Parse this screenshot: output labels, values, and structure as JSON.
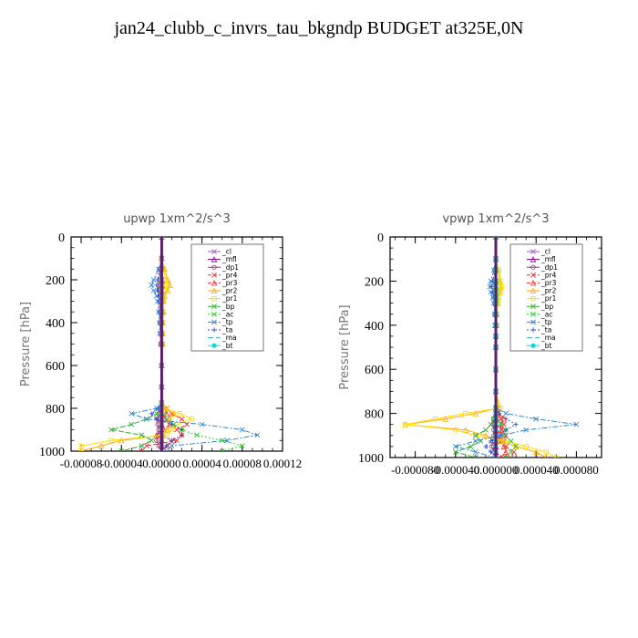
{
  "title": "jan24_clubb_c_invrs_tau_bkgndp  BUDGET at325E,0N",
  "series_styles": [
    {
      "name": "_cl",
      "color": "#9966cc",
      "marker": "x",
      "dash": ""
    },
    {
      "name": "_mfl",
      "color": "#800080",
      "marker": "tri",
      "dash": ""
    },
    {
      "name": "_dp1",
      "color": "#993366",
      "marker": "circle",
      "dash": ""
    },
    {
      "name": "_pr4",
      "color": "#ee3333",
      "marker": "x",
      "dash": "4,2"
    },
    {
      "name": "_pr3",
      "color": "#ee3333",
      "marker": "tri",
      "dash": "4,2"
    },
    {
      "name": "_pr2",
      "color": "#ffaa00",
      "marker": "tri",
      "dash": ""
    },
    {
      "name": "_pr1",
      "color": "#ffdd00",
      "marker": "square",
      "dash": ""
    },
    {
      "name": "_bp",
      "color": "#33aa33",
      "marker": "x",
      "dash": "6,2"
    },
    {
      "name": "_ac",
      "color": "#33cc33",
      "marker": "x",
      "dash": "2,2"
    },
    {
      "name": "_tp",
      "color": "#3388cc",
      "marker": "x",
      "dash": "6,2,2,2"
    },
    {
      "name": "_ta",
      "color": "#3355cc",
      "marker": "plus",
      "dash": "2,2"
    },
    {
      "name": "_ma",
      "color": "#22aacc",
      "marker": "none",
      "dash": "6,3"
    },
    {
      "name": "_bt",
      "color": "#00dddd",
      "marker": "dot",
      "dash": ""
    }
  ],
  "chart_data": [
    {
      "type": "line",
      "title": "upwp   1xm^2/s^3",
      "ylabel": "Pressure  [hPa]",
      "xlim": [
        -9e-05,
        0.00012
      ],
      "ylim": [
        1000,
        0
      ],
      "x_tick_labels": [
        "-0.00008",
        "-0.00004",
        "0.00000",
        "0.00004",
        "0.00008",
        "0.00012"
      ],
      "x_tick_values": [
        -8e-05,
        -4e-05,
        0.0,
        4e-05,
        8e-05,
        0.00012
      ],
      "y_tick_labels": [
        "0",
        "200",
        "400",
        "600",
        "800",
        "1000"
      ],
      "y_tick_values": [
        0,
        200,
        400,
        600,
        800,
        1000
      ],
      "legend_position": "top-right",
      "pressure_levels": [
        0,
        100,
        150,
        200,
        225,
        250,
        275,
        300,
        350,
        400,
        450,
        500,
        600,
        700,
        775,
        800,
        825,
        850,
        875,
        900,
        925,
        950,
        975,
        1000
      ],
      "series": [
        {
          "name": "_cl",
          "values": [
            0,
            0,
            0,
            0,
            0,
            0,
            0,
            0,
            0,
            0,
            0,
            0,
            0,
            0,
            0,
            0,
            0,
            0,
            0,
            0,
            0,
            0,
            0,
            0
          ]
        },
        {
          "name": "_mfl",
          "values": [
            0,
            0,
            0,
            0,
            0,
            0,
            0,
            0,
            0,
            0,
            0,
            0,
            0,
            0,
            0,
            0,
            0,
            0,
            0,
            0,
            0,
            0,
            0,
            0
          ]
        },
        {
          "name": "_dp1",
          "values": [
            0,
            0,
            -2e-06,
            -2e-06,
            -3e-06,
            -3e-06,
            -2e-06,
            -2e-06,
            -2e-06,
            -2e-06,
            -1e-06,
            -1e-06,
            0,
            0,
            0,
            0,
            -3e-06,
            -4e-06,
            -4e-06,
            -3e-06,
            -4e-06,
            -5e-06,
            -3e-06,
            0
          ]
        },
        {
          "name": "_pr4",
          "values": [
            0,
            0,
            0,
            1e-06,
            1e-06,
            1e-06,
            1e-06,
            1e-06,
            1e-06,
            0,
            0,
            0,
            0,
            0,
            0,
            5e-06,
            1e-05,
            2e-05,
            2.5e-05,
            1.5e-05,
            2e-05,
            1.5e-05,
            -1.5e-05,
            -2e-05
          ]
        },
        {
          "name": "_pr3",
          "values": [
            0,
            0,
            0,
            0,
            0,
            0,
            0,
            0,
            0,
            0,
            0,
            0,
            0,
            0,
            0,
            3e-06,
            5e-06,
            3e-06,
            8e-06,
            2e-06,
            -5e-06,
            1.2e-05,
            5e-06,
            0
          ]
        },
        {
          "name": "_pr2",
          "values": [
            0,
            0,
            3e-06,
            6e-06,
            8e-06,
            6e-06,
            3e-06,
            2e-06,
            2e-06,
            1e-06,
            1e-06,
            1e-06,
            0,
            0,
            0,
            3e-06,
            1.2e-05,
            8e-06,
            1e-05,
            5e-06,
            2e-06,
            -4e-05,
            -6e-05,
            -8e-05
          ]
        },
        {
          "name": "_pr1",
          "values": [
            0,
            0,
            2e-06,
            4e-06,
            5e-06,
            4e-06,
            2e-06,
            2e-06,
            1e-06,
            1e-06,
            1e-06,
            1e-06,
            0,
            0,
            0,
            4e-06,
            1.8e-05,
            3e-05,
            1.5e-05,
            1e-05,
            5e-06,
            -5e-05,
            -8e-05,
            -8e-05
          ]
        },
        {
          "name": "_bp",
          "values": [
            0,
            0,
            0,
            0,
            0,
            0,
            0,
            0,
            0,
            0,
            0,
            0,
            0,
            0,
            0,
            -2e-06,
            -5e-06,
            -1.5e-05,
            -3e-05,
            -5e-05,
            -2e-05,
            -1e-05,
            -2e-05,
            -4e-05
          ]
        },
        {
          "name": "_ac",
          "values": [
            0,
            0,
            0,
            0,
            0,
            0,
            0,
            0,
            0,
            0,
            0,
            0,
            0,
            0,
            0,
            0,
            2e-06,
            5e-06,
            1.2e-05,
            2e-05,
            3.5e-05,
            6e-05,
            8e-05,
            6e-05
          ]
        },
        {
          "name": "_tp",
          "values": [
            0,
            0,
            -3e-06,
            -8e-06,
            -1e-05,
            -8e-06,
            -5e-06,
            -4e-06,
            -3e-06,
            -2e-06,
            -2e-06,
            -1e-06,
            0,
            0,
            0,
            -5e-06,
            -3e-05,
            -1.5e-05,
            4e-05,
            8e-05,
            9.5e-05,
            6.5e-05,
            1e-05,
            5e-06
          ]
        },
        {
          "name": "_ta",
          "values": [
            0,
            0,
            -2e-06,
            -4e-06,
            -5e-06,
            -4e-06,
            -3e-06,
            -2e-06,
            -2e-06,
            -1e-06,
            -1e-06,
            0,
            0,
            0,
            0,
            -3e-06,
            -1e-05,
            -5e-06,
            1e-05,
            2e-05,
            2e-05,
            1e-05,
            5e-06,
            0
          ]
        },
        {
          "name": "_ma",
          "values": [
            0,
            0,
            0,
            0,
            0,
            0,
            0,
            0,
            0,
            0,
            0,
            0,
            0,
            0,
            0,
            0,
            0,
            0,
            0,
            0,
            0,
            0,
            0,
            0
          ]
        },
        {
          "name": "_bt",
          "values": [
            0,
            0,
            0,
            0,
            0,
            0,
            0,
            0,
            0,
            0,
            0,
            0,
            0,
            0,
            0,
            0,
            0,
            0,
            0,
            0,
            0,
            0,
            0,
            0
          ]
        }
      ]
    },
    {
      "type": "line",
      "title": "vpwp   1xm^2/s^3",
      "ylabel": "Pressure  [hPa]",
      "xlim": [
        -0.000105,
        0.000105
      ],
      "ylim": [
        1000,
        0
      ],
      "x_tick_labels": [
        "-0.000080",
        "-0.000040",
        "0.000000",
        "0.000040",
        "0.000080"
      ],
      "x_tick_values": [
        -8e-05,
        -4e-05,
        0.0,
        4e-05,
        8e-05
      ],
      "y_tick_labels": [
        "0",
        "200",
        "400",
        "600",
        "800",
        "1000"
      ],
      "y_tick_values": [
        0,
        200,
        400,
        600,
        800,
        1000
      ],
      "legend_position": "top-right",
      "pressure_levels": [
        0,
        100,
        150,
        200,
        225,
        250,
        275,
        300,
        350,
        400,
        450,
        500,
        600,
        700,
        775,
        800,
        825,
        850,
        875,
        900,
        925,
        950,
        975,
        1000
      ],
      "series": [
        {
          "name": "_cl",
          "values": [
            0,
            0,
            0,
            0,
            0,
            0,
            0,
            0,
            0,
            0,
            0,
            0,
            0,
            0,
            0,
            0,
            0,
            0,
            0,
            0,
            0,
            0,
            0,
            0
          ]
        },
        {
          "name": "_mfl",
          "values": [
            0,
            0,
            0,
            0,
            0,
            0,
            0,
            0,
            0,
            0,
            0,
            0,
            0,
            0,
            0,
            0,
            0,
            0,
            0,
            0,
            0,
            0,
            0,
            0
          ]
        },
        {
          "name": "_dp1",
          "values": [
            0,
            0,
            -1e-06,
            -1e-06,
            -2e-06,
            -1e-06,
            -1e-06,
            -1e-06,
            -1e-06,
            0,
            0,
            0,
            0,
            0,
            0,
            0,
            -2e-06,
            -3e-06,
            -2e-06,
            -2e-06,
            -3e-06,
            -4e-06,
            -2e-06,
            0
          ]
        },
        {
          "name": "_pr4",
          "values": [
            0,
            0,
            0,
            0,
            0,
            0,
            0,
            0,
            0,
            0,
            0,
            0,
            0,
            0,
            0,
            2e-06,
            5e-06,
            8e-06,
            6e-06,
            1e-05,
            8e-06,
            1e-05,
            1.8e-05,
            1.5e-05
          ]
        },
        {
          "name": "_pr3",
          "values": [
            0,
            0,
            0,
            0,
            0,
            0,
            0,
            0,
            0,
            0,
            0,
            0,
            0,
            0,
            0,
            3e-06,
            8e-06,
            5e-06,
            5e-06,
            5e-06,
            3e-06,
            8e-06,
            1e-05,
            5e-06
          ]
        },
        {
          "name": "_pr2",
          "values": [
            0,
            0,
            2e-06,
            4e-06,
            5e-06,
            4e-06,
            2e-06,
            2e-06,
            1e-06,
            1e-06,
            0,
            0,
            0,
            0,
            3e-06,
            -2e-05,
            -5e-05,
            -9e-05,
            -3e-05,
            -1e-05,
            5e-06,
            2e-05,
            4e-05,
            5e-05
          ]
        },
        {
          "name": "_pr1",
          "values": [
            0,
            0,
            3e-06,
            5e-06,
            6e-06,
            5e-06,
            3e-06,
            2e-06,
            1e-06,
            1e-06,
            0,
            0,
            0,
            0,
            5e-06,
            -3e-05,
            -6e-05,
            -9e-05,
            -4e-05,
            -2e-05,
            1e-05,
            3e-05,
            5e-05,
            6e-05
          ]
        },
        {
          "name": "_bp",
          "values": [
            0,
            0,
            0,
            0,
            0,
            0,
            0,
            0,
            0,
            0,
            0,
            0,
            0,
            0,
            0,
            0,
            -2e-06,
            -5e-06,
            -1e-05,
            -2e-05,
            -1.5e-05,
            -2.5e-05,
            -4e-05,
            -2e-05
          ]
        },
        {
          "name": "_ac",
          "values": [
            0,
            0,
            0,
            0,
            0,
            0,
            0,
            0,
            0,
            0,
            0,
            0,
            0,
            0,
            0,
            0,
            2e-06,
            5e-06,
            1e-05,
            8e-06,
            1.5e-05,
            2e-05,
            1.5e-05,
            1e-05
          ]
        },
        {
          "name": "_tp",
          "values": [
            0,
            0,
            -2e-06,
            -5e-06,
            -6e-06,
            -5e-06,
            -3e-06,
            -2e-06,
            -1e-06,
            -1e-06,
            0,
            0,
            0,
            0,
            0,
            1e-05,
            4e-05,
            8e-05,
            3e-05,
            5e-06,
            -2e-05,
            -4e-05,
            -2e-05,
            0
          ]
        },
        {
          "name": "_ta",
          "values": [
            0,
            0,
            -1e-06,
            -3e-06,
            -4e-06,
            -3e-06,
            -2e-06,
            -1e-06,
            -1e-06,
            0,
            0,
            0,
            0,
            0,
            0,
            3e-06,
            1e-05,
            2e-05,
            1e-05,
            2e-06,
            -5e-06,
            -1e-05,
            -5e-06,
            0
          ]
        },
        {
          "name": "_ma",
          "values": [
            0,
            0,
            0,
            0,
            0,
            0,
            0,
            0,
            0,
            0,
            0,
            0,
            0,
            0,
            0,
            0,
            0,
            0,
            0,
            0,
            0,
            0,
            0,
            0
          ]
        },
        {
          "name": "_bt",
          "values": [
            0,
            0,
            0,
            0,
            0,
            0,
            0,
            0,
            0,
            0,
            0,
            0,
            0,
            0,
            0,
            0,
            0,
            0,
            0,
            0,
            0,
            0,
            0,
            0
          ]
        }
      ]
    }
  ]
}
